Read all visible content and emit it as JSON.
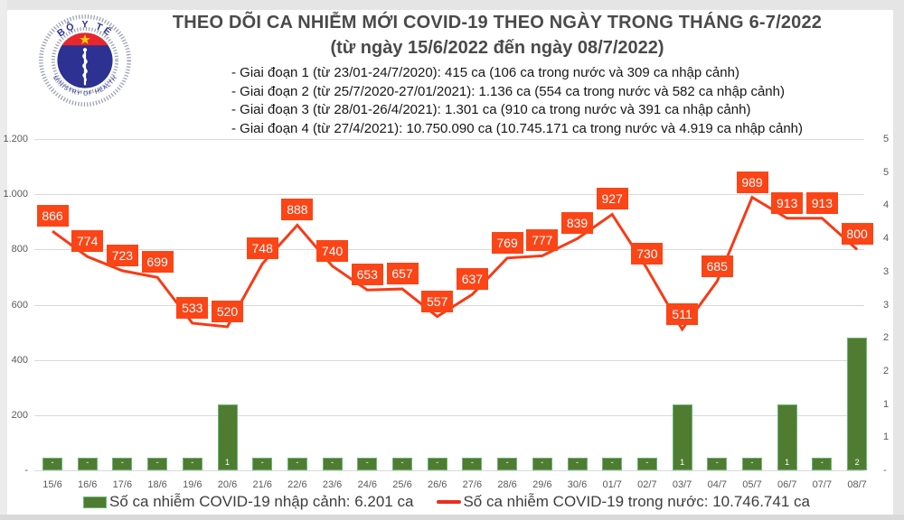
{
  "header": {
    "title": "THEO DÕI CA NHIỄM MỚI COVID-19 THEO NGÀY TRONG THÁNG 6-7/2022",
    "subtitle": "(từ ngày 15/6/2022 đến ngày 08/7/2022)",
    "phases": [
      "- Giai đoạn 1 (từ 23/01-24/7/2020): 415 ca (106 ca trong nước và 309 ca nhập cảnh)",
      "- Giai đoạn 2 (từ 25/7/2020-27/01/2021): 1.136 ca (554 ca trong nước và 582 ca nhập cảnh)",
      "- Giai đoạn 3 (từ 28/01-26/4/2021): 1.301 ca (910 ca trong nước và 391 ca nhập cảnh)",
      "- Giai đoạn 4 (từ 27/4/2021): 10.750.090 ca (10.745.171 ca trong nước và 4.919 ca nhập cảnh)"
    ]
  },
  "logo": {
    "arc_top": "BỘ Y TẾ",
    "arc_bottom": "MINISTRY OF HEALTH"
  },
  "chart_data": {
    "type": "line+bar",
    "categories": [
      "15/6",
      "16/6",
      "17/6",
      "18/6",
      "19/6",
      "20/6",
      "21/6",
      "22/6",
      "23/6",
      "24/6",
      "25/6",
      "26/6",
      "27/6",
      "28/6",
      "29/6",
      "30/6",
      "01/7",
      "02/7",
      "03/7",
      "04/7",
      "05/7",
      "06/7",
      "07/7",
      "08/7"
    ],
    "series": [
      {
        "name": "Số ca nhiễm COVID-19 trong nước",
        "type": "line",
        "axis": "left",
        "values": [
          866,
          774,
          723,
          699,
          533,
          520,
          748,
          888,
          740,
          653,
          657,
          557,
          637,
          769,
          777,
          839,
          927,
          730,
          511,
          685,
          989,
          913,
          913,
          800
        ]
      },
      {
        "name": "Số ca nhiễm COVID-19 nhập cảnh",
        "type": "bar",
        "axis": "right",
        "values": [
          0,
          0,
          0,
          0,
          0,
          1,
          0,
          0,
          0,
          0,
          0,
          0,
          0,
          0,
          0,
          0,
          0,
          0,
          1,
          0,
          0,
          1,
          0,
          2
        ],
        "bar_labels": [
          "-",
          "-",
          "-",
          "-",
          "-",
          "1",
          "-",
          "-",
          "-",
          "-",
          "-",
          "-",
          "-",
          "-",
          "-",
          "-",
          "-",
          "-",
          "1",
          "-",
          "-",
          "1",
          "-",
          "2"
        ]
      }
    ],
    "left_axis": {
      "min": 0,
      "max": 1200,
      "tick_labels_top_to_bottom": [
        "1.200",
        "1.000",
        "800",
        "600",
        "400",
        "200",
        "-"
      ]
    },
    "right_axis": {
      "min": 0,
      "max": 5,
      "tick_labels_top_to_bottom": [
        "5",
        "5",
        "4",
        "4",
        "3",
        "3",
        "2",
        "2",
        "1",
        "1",
        "-"
      ]
    },
    "grid": "horizontal"
  },
  "legend": {
    "bar_label": "Số ca nhiễm COVID-19 nhập cảnh: 6.201 ca",
    "line_label": "Số ca nhiễm COVID-19 trong nước: 10.746.741 ca"
  },
  "colors": {
    "line": "#f63b17",
    "point_label_bg": "#fb4517",
    "bar_fill": "#4f7c31",
    "bar_border": "#6cb576",
    "legend_line_swatch": "#e8301c",
    "grid": "#d9d9d9",
    "axis_text": "#595959",
    "logo_navy": "#2c3192",
    "logo_red": "#e8262d",
    "logo_star": "#ffd100"
  }
}
